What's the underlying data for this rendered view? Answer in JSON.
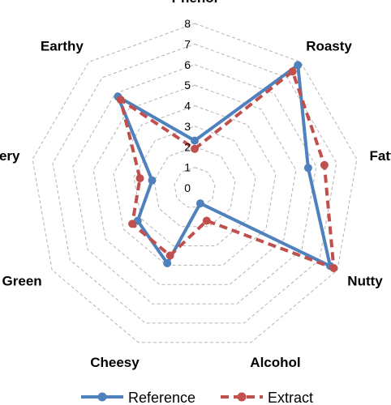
{
  "chart_data": {
    "type": "radar",
    "categories": [
      "Phenol",
      "Roasty",
      "Fatty",
      "Nutty",
      "Alcohol",
      "Cheesy",
      "Green",
      "Buttery",
      "Earthy"
    ],
    "rlim": [
      0,
      8
    ],
    "ticks": [
      "0",
      "1",
      "2",
      "3",
      "4",
      "5",
      "6",
      "7",
      "8"
    ],
    "grid": true,
    "legend_position": "bottom",
    "series": [
      {
        "name": "Reference",
        "values": [
          2.3,
          7.8,
          5.6,
          7.6,
          0.8,
          3.9,
          3.2,
          2.1,
          5.8
        ],
        "color": "#4f81bd",
        "dash": "solid"
      },
      {
        "name": "Extract",
        "values": [
          1.9,
          7.4,
          6.4,
          7.8,
          1.7,
          3.5,
          3.5,
          2.7,
          5.6
        ],
        "color": "#c0504d",
        "dash": "dashed"
      }
    ]
  }
}
